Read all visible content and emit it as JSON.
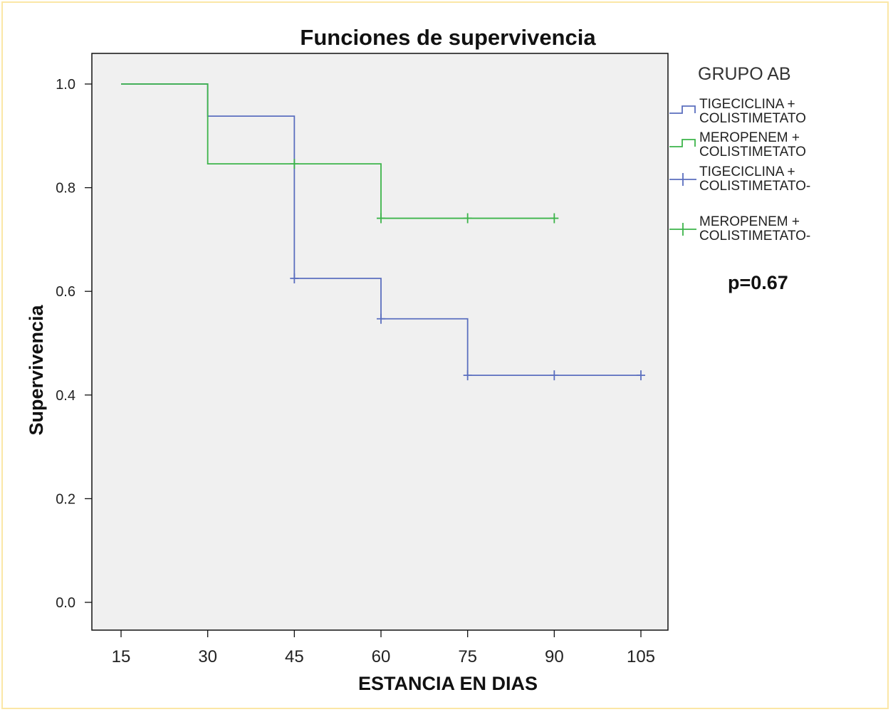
{
  "chart_data": {
    "type": "line",
    "title": "Funciones de supervivencia",
    "xlabel": "ESTANCIA EN DIAS",
    "ylabel": "Supervivencia",
    "x_ticks": [
      "15",
      "30",
      "45",
      "60",
      "75",
      "90",
      "105"
    ],
    "y_ticks": [
      "0.0",
      "0.2",
      "0.4",
      "0.6",
      "0.8",
      "1.0"
    ],
    "xlim": [
      15,
      105
    ],
    "ylim": [
      0,
      1
    ],
    "grid": false,
    "legend_title": "GRUPO AB",
    "legend_position": "right",
    "legend": [
      {
        "lines": [
          "TIGECICLINA +",
          "COLISTIMETATO"
        ],
        "color": "#5b6fbf",
        "symbol": "step"
      },
      {
        "lines": [
          "MEROPENEM +",
          "COLISTIMETATO"
        ],
        "color": "#3cb44a",
        "symbol": "step"
      },
      {
        "lines": [
          "TIGECICLINA +",
          "COLISTIMETATO-"
        ],
        "color": "#5b6fbf",
        "symbol": "censor"
      },
      {
        "lines": [
          "MEROPENEM +",
          "COLISTIMETATO-"
        ],
        "color": "#3cb44a",
        "symbol": "censor"
      }
    ],
    "series": [
      {
        "color": "#5b6fbf",
        "steps": [
          [
            15,
            1.0
          ],
          [
            30,
            0.938
          ],
          [
            45,
            0.625
          ],
          [
            60,
            0.547
          ],
          [
            75,
            0.438
          ],
          [
            105,
            0.438
          ]
        ],
        "censored": [
          [
            45,
            0.625
          ],
          [
            60,
            0.547
          ],
          [
            75,
            0.438
          ],
          [
            90,
            0.438
          ],
          [
            105,
            0.438
          ]
        ]
      },
      {
        "color": "#3cb44a",
        "steps": [
          [
            15,
            1.0
          ],
          [
            30,
            0.846
          ],
          [
            60,
            0.741
          ],
          [
            90,
            0.741
          ]
        ],
        "censored": [
          [
            45,
            0.846
          ],
          [
            60,
            0.741
          ],
          [
            75,
            0.741
          ],
          [
            90,
            0.741
          ]
        ]
      }
    ],
    "annotation": "p=0.67"
  }
}
